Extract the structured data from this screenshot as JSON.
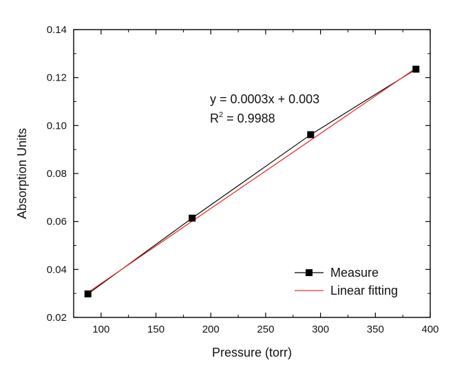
{
  "chart_data": {
    "type": "scatter",
    "title": "",
    "xlabel": "Pressure (torr)",
    "ylabel": "Absorption Units",
    "xlim": [
      75,
      400
    ],
    "ylim": [
      0.02,
      0.14
    ],
    "xticks": [
      100,
      150,
      200,
      250,
      300,
      350,
      400
    ],
    "yticks": [
      0.02,
      0.04,
      0.06,
      0.08,
      0.1,
      0.12,
      0.14
    ],
    "xtick_labels": [
      "100",
      "150",
      "200",
      "250",
      "300",
      "350",
      "400"
    ],
    "ytick_labels": [
      "0.02",
      "0.04",
      "0.06",
      "0.08",
      "0.10",
      "0.12",
      "0.14"
    ],
    "grid": false,
    "legend_position": "bottom-right",
    "series": [
      {
        "name": "Measure",
        "style": "line+square-markers",
        "color": "#000000",
        "x": [
          88,
          183,
          291,
          387
        ],
        "y": [
          0.0298,
          0.0614,
          0.0962,
          0.1235
        ]
      },
      {
        "name": "Linear fitting",
        "style": "line",
        "color": "#e8312a",
        "x": [
          88,
          387
        ],
        "y": [
          0.0304,
          0.1239
        ]
      }
    ],
    "annotation": {
      "equation": "y = 0.0003x + 0.003",
      "r2_prefix": "R",
      "r2_superscript": "2",
      "r2_value": " = 0.9988"
    }
  }
}
